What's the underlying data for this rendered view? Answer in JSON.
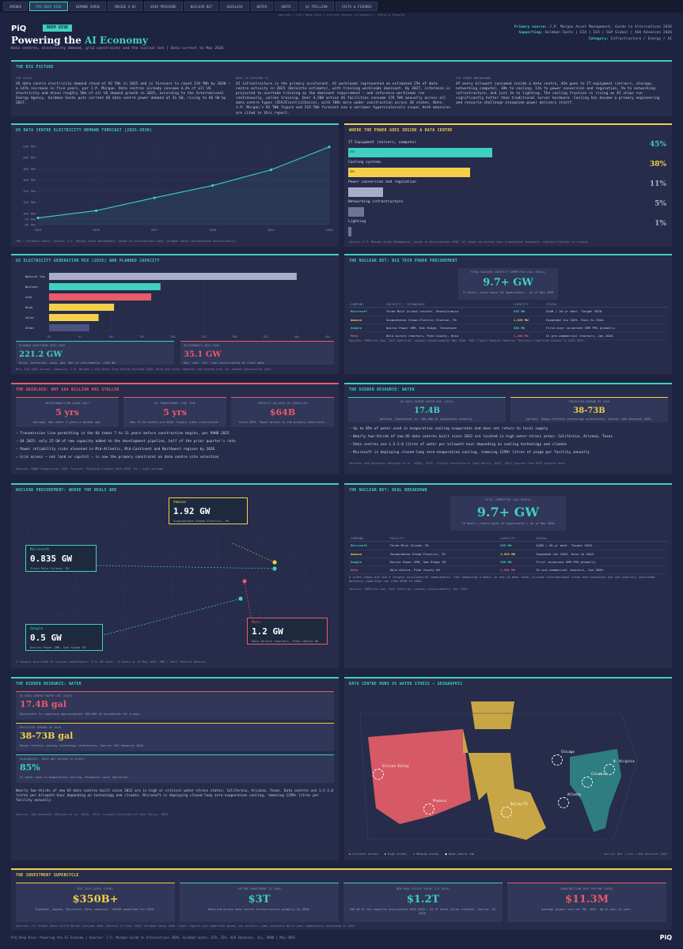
{
  "tabs": [
    "OPENED",
    "PIQ DEEP DIVE",
    "DEMAND SURGE",
    "INSIDE A DC",
    "GRID PRESSURE",
    "NUCLEAR BET",
    "GRIDLOCK",
    "WATER",
    "QUOTE",
    "$3 TRILLION",
    "FACTS & FIGURES"
  ],
  "subnav": "Sources | Full Deep Dive | Current Series (9 panels) | Facts & Figures",
  "header": {
    "logo": "PiQ",
    "badge": "DEEP DIVE",
    "title_pre": "Powering the ",
    "title_hl": "AI Economy",
    "subtitle": "Data centres, electricity demand, grid constraints and the nuclear bet | Data current to May 2026",
    "meta": [
      {
        "label": "Primary source:",
        "value": "J.P. Morgan Asset Management, Guide to Alternatives 2026"
      },
      {
        "label": "Supporting:",
        "value": "Goldman Sachs | EIA | IEA | S&P Global | AGU Advances 2026"
      },
      {
        "label": "Category:",
        "value": "Infrastructure / Energy / AI"
      }
    ]
  },
  "big_picture": {
    "title": "THE BIG PICTURE",
    "cols": [
      {
        "label": "THE SCALE",
        "text": "US data centre electricity demand stood at 92 TWh in 2025 and is forecast to reach 219 TWh by 2030 — a 147% increase in five years, per J.P. Morgan. Data centres already consume 4.4% of all US electricity and drove roughly 50% of all US demand growth in 2025, according to the International Energy Agency. Goldman Sachs puts current US data centre power demand at 31 GW, rising to 66 GW by 2027."
      },
      {
        "label": "WHAT IS DRIVING IT",
        "text": "AI infrastructure is the primary accelerant. AI workloads represented an estimated 25% of data centre activity in 2025 (Deloitte estimate), with training workloads dominant. By 2027, inference is projected to overtake training as the dominant requirement — and inference workloads run continuously, unlike training. Over 4,500 active US facilities consume 176 TWh annually across all data centre types (IEA/ElectricChoice), with 700+ more under construction across 38 states. Note: J.P. Morgan's 92 TWh figure and 219 TWh forecast use a narrower hyperscale/colo scope; both measures are cited in this report."
      },
      {
        "label": "THE POWER BREAKDOWN",
        "text": "Of every kilowatt consumed inside a data centre, 45% goes to IT equipment (servers, storage, networking compute), 38% to cooling, 11% to power conversion and regulation, 5% to networking infrastructure, and just 1% to lighting. The cooling fraction is rising as AI chips run significantly hotter than traditional server hardware. Cooling has become a primary engineering and resource challenge alongside power delivery itself."
      }
    ]
  },
  "forecast": {
    "title": "US DATA CENTRE ELECTRICITY DEMAND FORECAST (2025-2030)",
    "source": "TWh = Terawatt hours. Source: J.P. Morgan Asset Management, Guide to Alternatives 2026, Goldman Sachs corroborates directionally."
  },
  "chart_data": [
    {
      "type": "line",
      "x": [
        "2025",
        "2026",
        "2027",
        "2028",
        "2029",
        "2030"
      ],
      "values": [
        92,
        105,
        128,
        150,
        178,
        219
      ],
      "yticks": [
        "80 TWh",
        "90 TWh",
        "100 TWh",
        "120 TWh",
        "140 TWh",
        "160 TWh",
        "180 TWh",
        "200 TWh",
        "220 TWh"
      ],
      "ylim": [
        80,
        230
      ],
      "series": [
        {
          "name": "",
          "values": [
            92,
            105,
            128,
            150,
            178,
            219
          ]
        }
      ]
    },
    {
      "type": "bar",
      "title": "US ELECTRICITY GENERATION MIX (2025) AND PLANNED CAPACITY",
      "categories": [
        "Natural Gas",
        "Nuclear",
        "Coal",
        "Wind",
        "Solar",
        "Other"
      ],
      "values": [
        40,
        18,
        16.5,
        10.5,
        8,
        6.5
      ],
      "xticks": [
        "0%",
        "5%",
        "10%",
        "15%",
        "20%",
        "25%",
        "30%",
        "35%",
        "40%",
        "45%"
      ],
      "xlim": [
        0,
        45
      ]
    },
    {
      "type": "bar",
      "title": "WHERE THE POWER GOES INSIDE A DATA CENTRE",
      "categories": [
        "IT Equipment (servers, compute)",
        "Cooling systems",
        "Power conversion and regulation",
        "Networking infrastructure",
        "Lighting"
      ],
      "values": [
        45,
        38,
        11,
        5,
        1
      ]
    }
  ],
  "power_breakdown": {
    "title": "WHERE THE POWER GOES INSIDE A DATA CENTRE",
    "items": [
      {
        "label": "IT Equipment (servers, compute)",
        "pct": "45%",
        "bar": "45%",
        "color": "#3fd0c0"
      },
      {
        "label": "Cooling systems",
        "pct": "38%",
        "bar": "38%",
        "color": "#f4cf4a"
      },
      {
        "label": "Power conversion and regulation",
        "pct": "11%",
        "bar": "",
        "color": "#a8aec8"
      },
      {
        "label": "Networking infrastructure",
        "pct": "5%",
        "bar": "",
        "color": "#6e7698"
      },
      {
        "label": "Lighting",
        "pct": "1%",
        "bar": "",
        "color": "#6e7698"
      }
    ],
    "source": "Source: J.P. Morgan Asset Management, Guide to Alternatives 2026. AI chips run hotter than traditional hardware; cooling fraction is rising."
  },
  "genmix": {
    "title": "US ELECTRICITY GENERATION MIX (2025) AND PLANNED CAPACITY",
    "colors": [
      "#a8aec8",
      "#3fd0c0",
      "#ea5a6a",
      "#f4cf4a",
      "#f4cf4a",
      "#4a5280"
    ],
    "stats": [
      {
        "label": "PLANNED ADDITIONS 2026-2030",
        "value": "221.2 GW",
        "desc": "Solar, batteries, wind, gas. Net of retirements: +186 GW."
      },
      {
        "label": "RETIREMENTS 2026-2030",
        "value": "35.1 GW",
        "desc": "Gas, coal, oil. Coal accelerating as fleet ages."
      }
    ],
    "source": "Mix: EIA 2025 actual. Capacity: J.P. Morgan / EIA Short-Term Energy Outlook 2026. Wind and solar together now exceed coal for second consecutive year."
  },
  "nuclear": {
    "title": "THE NUCLEAR BET: BIG TECH POWER PROCUREMENT",
    "box_label": "TOTAL NUCLEAR CAPACITY COMMITTED (ALL DEALS)",
    "box_value": "9.7+ GW",
    "box_desc": "13 deals, every major US hyperscaler · As of May 2026",
    "headers": [
      "COMPANY",
      "FACILITY / TECHNOLOGY",
      "CAPACITY",
      "STATUS"
    ],
    "rows": [
      [
        "Microsoft",
        "Three Mile Island restart, Pennsylvania",
        "835 MW",
        "$16B / 20-yr deal. Target 2028."
      ],
      [
        "Amazon",
        "Susquehanna Steam Electric Station, PA",
        "1,920 MW",
        "Expanded Jun 2025. Runs to 2042."
      ],
      [
        "Google",
        "Kairos Power SMR, Oak Ridge, Tennessee",
        "500 MW",
        "First-ever corporate SMR PPA globally."
      ],
      [
        "Meta",
        "Oklo Aurora reactors, Pike County, Ohio",
        "1,200 MW",
        "In pre-commercial reactors, Jan 2026."
      ]
    ],
    "colors": [
      "#3fd0c0",
      "#f4cf4a",
      "#3fd0c0",
      "#ea5a6a"
    ],
    "source": "Sources: SMRStrat.com, 2025 Spectrum, company announcements May 2026. SMR = Small Modular Reactor. Delivery timelines extend to 2028-2042."
  },
  "gridlock": {
    "title": "THE GRIDLOCK: WHY $64 BILLION HAS STALLED",
    "stats": [
      {
        "label": "INTERCONNECTION QUEUE WAIT",
        "value": "5 yrs",
        "desc": "Average. Was under 2 years a decade ago."
      },
      {
        "label": "HV TRANSFORMER LEAD TIME",
        "value": "5 yrs",
        "desc": "Was 24-30 months pre-2020. Supply chain constrained."
      },
      {
        "label": "PROJECTS DELAYED OR CANCELLED",
        "value": "$64B",
        "desc": "Since 2023. Power access is the primary constraint."
      }
    ],
    "bullets": [
      "Transmission line permitting in the US takes 7 to 11 years before construction begins, per RAND 2025",
      "Q4 2025: only 25 GW of new capacity added to the development pipeline, half of the prior quarter's rate",
      "Power reliability risks elevated in Mid-Atlantic, Mid-Continent and Northwest regions by 2026",
      "Grid access — not land or capital — is now the primary constraint on data centre site selection"
    ],
    "source": "Sources: RAND Corporation, EDR, Fortune, Pipeline Climate 2025-2026. HV = high voltage."
  },
  "water1": {
    "title": "THE HIDDEN RESOURCE: WATER",
    "stats": [
      {
        "label": "US DATA CENTRE WATER USE (2023)",
        "value": "17.4B",
        "desc": "gallons. Equivalent to ~160,000 US households annually."
      },
      {
        "label": "PROJECTED DEMAND BY 2028",
        "value": "38-73B",
        "desc": "gallons. Range reflects technology uncertainty. Source: AGU Advances 2026."
      }
    ],
    "bullets": [
      "Up to 85% of water used in evaporative cooling evaporates and does not return to local supply",
      "Nearly two-thirds of new US data centres built since 2022 are located in high water-stress areas: California, Arizona, Texas",
      "Data centres use 1.5-3.0 litres of water per kilowatt-hour depending on cooling technology and climate",
      "Microsoft is deploying closed-loop zero-evaporation cooling, removing 125M+ litres of usage per facility annually"
    ],
    "source": "Sources: AGU Advances (Missimo et al. 2026), EESI, Lincoln Institute of Land Policy, MOII, 2023 figures from EESI present data."
  },
  "map1": {
    "title": "NUCLEAR PROCUREMENT: WHERE THE DEALS ARE",
    "callouts": [
      {
        "company": "Amazon",
        "value": "1.92 GW",
        "desc": "Susquehanna Steam Electric, PA",
        "color": "#f4cf4a"
      },
      {
        "company": "Microsoft",
        "value": "0.835 GW",
        "desc": "Three Mile Island, PA",
        "color": "#3fd0c0"
      },
      {
        "company": "Google",
        "value": "0.5 GW",
        "desc": "Kairos Power SMR, Oak Ridge TN",
        "color": "#3fd0c0"
      },
      {
        "company": "Meta",
        "value": "1.2 GW",
        "desc": "Oklo Aurora reactors, Pike County OH",
        "color": "#ea5a6a"
      }
    ],
    "source": "4 largest disclosed US nuclear commitments. 9.7+ GW total, 13 deals as of May 2026. SMR = Small Modular Reactor."
  },
  "deal": {
    "title": "THE NUCLEAR BET: DEAL BREAKDOWN",
    "box_label": "TOTAL COMMITTED (ALL DEALS)",
    "box_value": "9.7+ GW",
    "box_desc": "13 deals | every major US hyperscaler | as of May 2026",
    "headers": [
      "COMPANY",
      "FACILITY",
      "CAPACITY",
      "DETAIL"
    ],
    "rows": [
      [
        "Microsoft",
        "Three Mile Island, PA",
        "835 MW",
        "$16B / 20-yr deal. Target 2028."
      ],
      [
        "Amazon",
        "Susquehanna Steam Electric, PA",
        "1,920 MW",
        "Expanded Jun 2025. Runs to 2042."
      ],
      [
        "Google",
        "Kairos Power SMR, Oak Ridge TN",
        "500 MW",
        "First corporate SMR PPA globally."
      ],
      [
        "Meta",
        "Oklo Aurora, Pike County OH",
        "1,200 MW",
        "In pre-commercial reactors, Jan 2026."
      ]
    ],
    "colors": [
      "#3fd0c0",
      "#f4cf4a",
      "#3fd0c0",
      "#ea5a6a"
    ],
    "note": "4 sites shown are the 4 largest disclosed US commitments. The remaining 9 deals in the 13-deal total include international sites and locations not yet publicly confirmed. Delivery timelines run from 2028 to 2042.",
    "source": "Sources: SMRStrat.com, 2025 Spectrum, company announcements, May 2026."
  },
  "water2": {
    "title": "THE HIDDEN RESOURCE: WATER",
    "stats": [
      {
        "label": "US DATA CENTRE WATER USE (2023)",
        "value": "17.4B gal",
        "desc": "Equivalent to supplying approximately 160,000 US households for a year.",
        "color": "#ea5a6a"
      },
      {
        "label": "PROJECTED DEMAND BY 2028",
        "value": "38-73B gal",
        "desc": "Range reflects cooling technology uncertainty. Source: AGU Advances 2026.",
        "color": "#f4cf4a"
      },
      {
        "label": "EVAPORATED — DOES NOT RETURN TO SUPPLY",
        "value": "85%",
        "desc": "Of water used in evaporative cooling. Permanent local depletion.",
        "color": "#3fd0c0"
      }
    ],
    "text": "Nearly two-thirds of new US data centres built since 2022 are in high or critical water-stress states: California, Arizona, Texas. Data centres use 1.5-3.0 litres per kilowatt-hour depending on technology and climate. Microsoft is deploying closed-loop zero-evaporation cooling, removing 125M+ litres per facility annually.",
    "source": "Sources: AGU Advances (Missimo et al. 2026), EESI, Lincoln Institute of Land Policy, MOII."
  },
  "map2": {
    "title": "DATA CENTRE HUBS VS WATER STRESS — GEOGRAPHIC",
    "hubs": [
      "Silicon Valley",
      "Phoenix",
      "Dallas/TX",
      "Chicago",
      "N. Virginia",
      "Columbus",
      "Atlanta"
    ],
    "legend": [
      {
        "label": "Critical stress",
        "color": "#e0606a"
      },
      {
        "label": "High stress",
        "color": "#c9a645"
      },
      {
        "label": "Medium stress",
        "color": "#2e7d80"
      },
      {
        "label": "Data centre hub",
        "color": "#ffffff"
      }
    ],
    "source": "Source: WRI / EIA / AGU Advances 2026"
  },
  "supercycle": {
    "title": "THE INVESTMENT SUPERCYCLE",
    "stats": [
      {
        "label": "BIG TECH CAPEX (2026)",
        "value": "$350B+",
        "desc": "Alphabet, Amazon, Microsoft, Meta combined. ~$650B committed for 2026.",
        "color": "#f4cf4a"
      },
      {
        "label": "SECTOR INVESTMENT TO 2030",
        "value": "$3T",
        "desc": "Required across data centre infrastructure globally by 2030.",
        "color": "#3fd0c0"
      },
      {
        "label": "NEW REAL ESTATE VALUE (TO 2030)",
        "value": "$1.2T",
        "desc": "100 GW of new capacity anticipated 2026-2030 = $1.2T asset value creation. Source: JLL 2026.",
        "color": "#3fd0c0"
      },
      {
        "label": "CONSTRUCTION COST PER MW (2026)",
        "value": "$11.3M",
        "desc": "Average global cost per MW, 2026. Up 6% year on year.",
        "color": "#ea5a6a"
      }
    ],
    "source": "Sources: JLL Global Data Centre Market Outlook 2026, Reuters & Press 2026, Goldman Sachs 2026. Capex figures are committed spend, not actuals; some represent multi-year commitments announced in 2025."
  },
  "footer": {
    "text": "PiQ Deep Dive: Powering the AI Economy | Sources: J.P. Morgan Guide to Alternatives 2026, Goldman Sachs, EIA, IEA, AGU Advances, JLL, RAND | May 2026",
    "logo": "PiQ"
  }
}
